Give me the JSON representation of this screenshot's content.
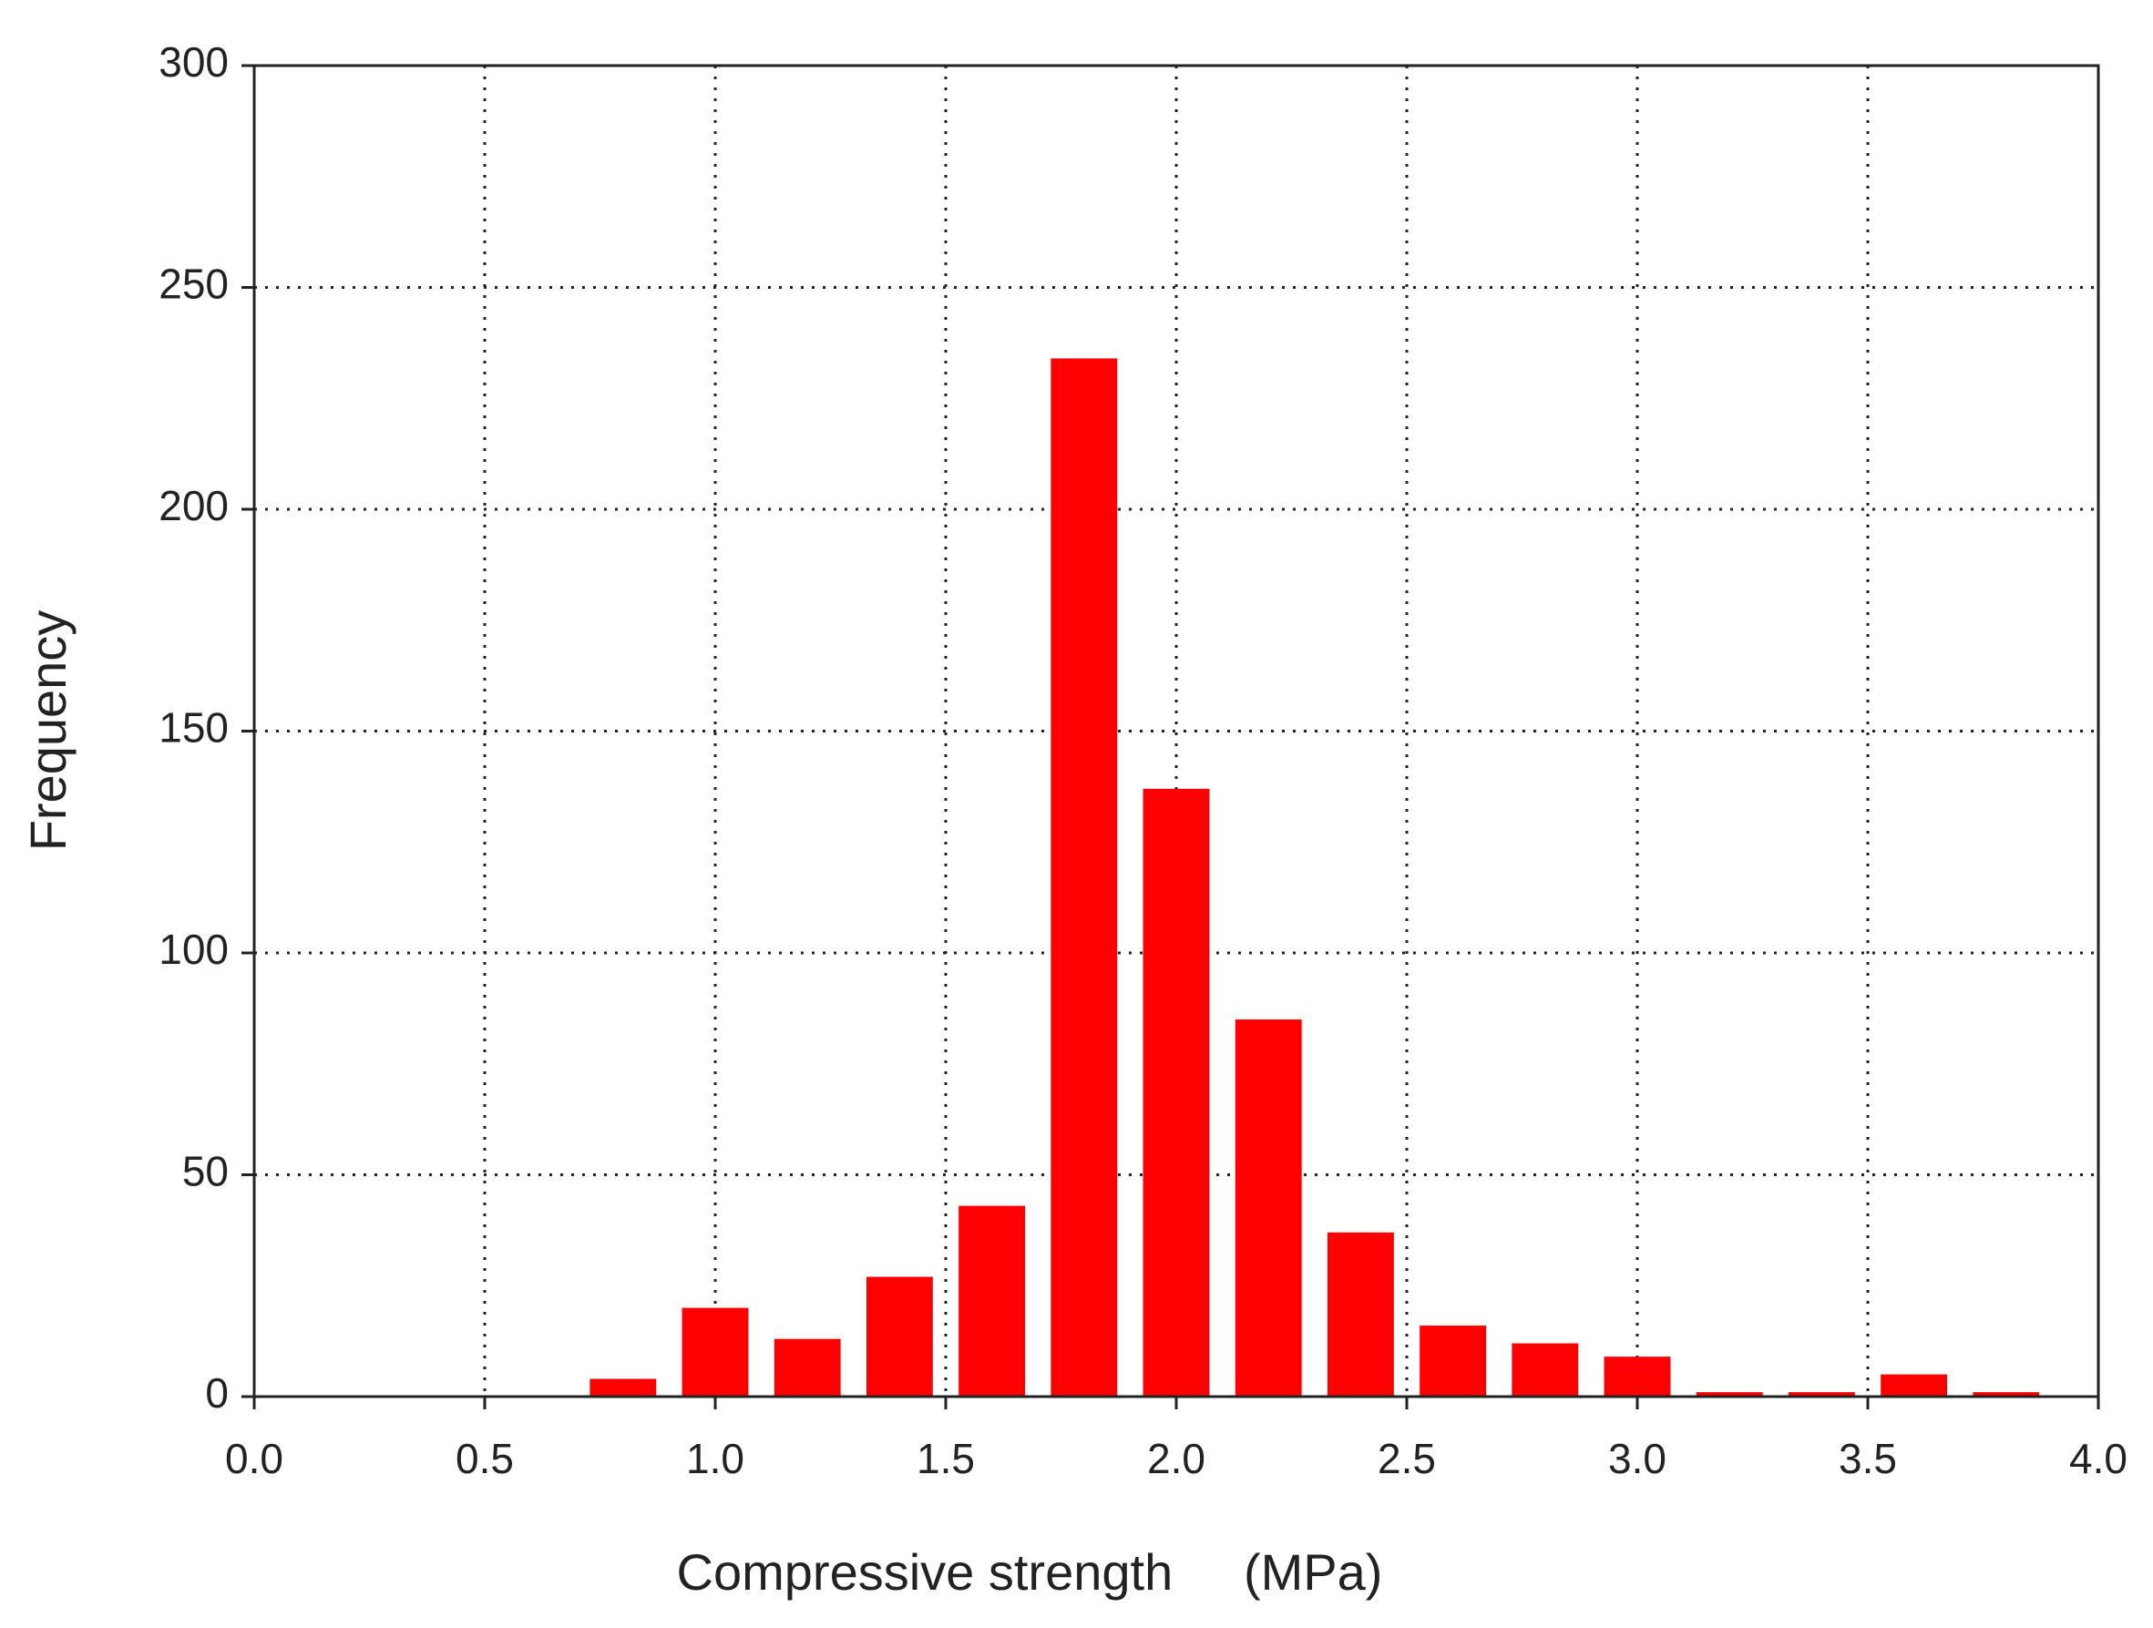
{
  "chart_data": {
    "type": "histogram",
    "x_label": "Compressive strength     (MPa)",
    "y_label": "Frequency",
    "bins": [
      0.7,
      0.9,
      1.1,
      1.3,
      1.5,
      1.7,
      1.9,
      2.1,
      2.3,
      2.5,
      2.7,
      2.9,
      3.1,
      3.3,
      3.5,
      3.7,
      3.9
    ],
    "values": [
      4,
      20,
      13,
      27,
      43,
      234,
      137,
      85,
      37,
      16,
      12,
      9,
      1,
      1,
      5,
      1
    ],
    "color": "#ff0000",
    "xlim": [
      0,
      4
    ],
    "xticks": [
      {
        "value": 0,
        "label": "0.0"
      },
      {
        "value": 0.5,
        "label": "0.5"
      },
      {
        "value": 1,
        "label": "1.0"
      },
      {
        "value": 1.5,
        "label": "1.5"
      },
      {
        "value": 2,
        "label": "2.0"
      },
      {
        "value": 2.5,
        "label": "2.5"
      },
      {
        "value": 3,
        "label": "3.0"
      },
      {
        "value": 3.5,
        "label": "3.5"
      },
      {
        "value": 4,
        "label": "4.0"
      }
    ],
    "ylim": [
      0,
      300
    ],
    "yticks": [
      0,
      50,
      100,
      150,
      200,
      250,
      300
    ],
    "grid": true
  }
}
